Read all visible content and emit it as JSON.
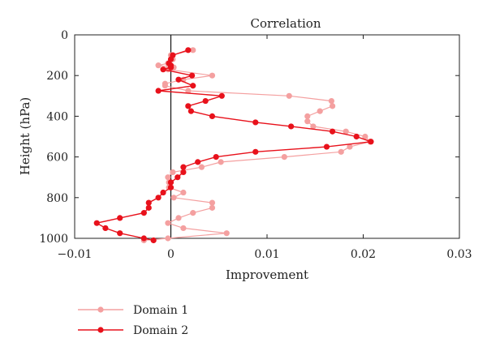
{
  "chart_data": {
    "type": "line",
    "title": "Correlation",
    "xlabel": "Improvement",
    "ylabel": "Height (hPa)",
    "xlim": [
      -0.01,
      0.03
    ],
    "ylim": [
      0,
      1000
    ],
    "y_inverted": true,
    "x_ticks": [
      -0.01,
      0,
      0.01,
      0.02,
      0.03
    ],
    "x_tick_labels": [
      "−0.01",
      "0",
      "0.01",
      "0.02",
      "0.03"
    ],
    "y_ticks": [
      0,
      200,
      400,
      600,
      800,
      1000
    ],
    "y_tick_labels": [
      "0",
      "200",
      "400",
      "600",
      "800",
      "1000"
    ],
    "vertical_reference_line_x": 0,
    "legend_position": "bottom-left",
    "series": [
      {
        "name": "Domain 1",
        "color": "#f4a0a0",
        "points": [
          [
            0.0023,
            75
          ],
          [
            0.0,
            100
          ],
          [
            0.0002,
            120
          ],
          [
            -0.0003,
            140
          ],
          [
            -0.0013,
            150
          ],
          [
            0.0003,
            160
          ],
          [
            -0.0003,
            170
          ],
          [
            0.0043,
            200
          ],
          [
            0.0013,
            220
          ],
          [
            -0.0006,
            240
          ],
          [
            -0.0006,
            250
          ],
          [
            0.0018,
            275
          ],
          [
            0.0123,
            300
          ],
          [
            0.0167,
            325
          ],
          [
            0.0168,
            350
          ],
          [
            0.0155,
            375
          ],
          [
            0.0142,
            400
          ],
          [
            0.0142,
            425
          ],
          [
            0.0148,
            450
          ],
          [
            0.0182,
            475
          ],
          [
            0.0202,
            500
          ],
          [
            0.0207,
            525
          ],
          [
            0.0186,
            550
          ],
          [
            0.0177,
            575
          ],
          [
            0.0118,
            600
          ],
          [
            0.0052,
            625
          ],
          [
            0.0032,
            650
          ],
          [
            0.0002,
            675
          ],
          [
            -0.0003,
            700
          ],
          [
            -0.0002,
            725
          ],
          [
            -0.0002,
            750
          ],
          [
            0.0013,
            775
          ],
          [
            0.0003,
            800
          ],
          [
            0.0043,
            825
          ],
          [
            0.0043,
            850
          ],
          [
            0.0023,
            875
          ],
          [
            0.0008,
            900
          ],
          [
            -0.0003,
            925
          ],
          [
            0.0013,
            950
          ],
          [
            0.0058,
            975
          ],
          [
            -0.0003,
            1000
          ],
          [
            -0.0028,
            1010
          ]
        ]
      },
      {
        "name": "Domain 2",
        "color": "#e8111b",
        "points": [
          [
            0.0018,
            75
          ],
          [
            0.0002,
            100
          ],
          [
            0.0,
            120
          ],
          [
            -0.0002,
            140
          ],
          [
            0.0,
            150
          ],
          [
            0.0,
            160
          ],
          [
            -0.0008,
            170
          ],
          [
            0.0022,
            200
          ],
          [
            0.0008,
            220
          ],
          [
            0.0023,
            250
          ],
          [
            -0.0013,
            275
          ],
          [
            0.0053,
            300
          ],
          [
            0.0036,
            325
          ],
          [
            0.0018,
            350
          ],
          [
            0.0021,
            375
          ],
          [
            0.0043,
            400
          ],
          [
            0.0088,
            430
          ],
          [
            0.0125,
            450
          ],
          [
            0.0168,
            475
          ],
          [
            0.0193,
            500
          ],
          [
            0.0208,
            525
          ],
          [
            0.0162,
            550
          ],
          [
            0.0088,
            575
          ],
          [
            0.0047,
            600
          ],
          [
            0.0028,
            625
          ],
          [
            0.0013,
            650
          ],
          [
            0.0013,
            675
          ],
          [
            0.0007,
            700
          ],
          [
            0.0,
            725
          ],
          [
            0.0,
            750
          ],
          [
            -0.0008,
            775
          ],
          [
            -0.0013,
            800
          ],
          [
            -0.0023,
            825
          ],
          [
            -0.0023,
            850
          ],
          [
            -0.0028,
            875
          ],
          [
            -0.0053,
            900
          ],
          [
            -0.0077,
            925
          ],
          [
            -0.0068,
            950
          ],
          [
            -0.0053,
            975
          ],
          [
            -0.0028,
            1000
          ],
          [
            -0.0018,
            1010
          ]
        ]
      }
    ]
  }
}
